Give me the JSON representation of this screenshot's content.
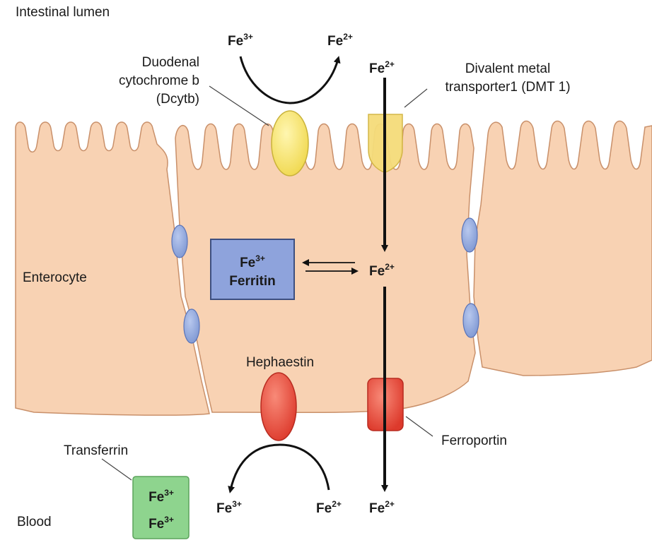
{
  "labels": {
    "intestinal_lumen": "Intestinal lumen",
    "dcytb": [
      "Duodenal",
      "cytochrome b",
      "(Dcytb)"
    ],
    "dmt1": [
      "Divalent metal",
      "transporter1 (DMT 1)"
    ],
    "enterocyte": "Enterocyte",
    "hephaestin": "Hephaestin",
    "ferroportin": "Ferroportin",
    "transferrin": "Transferrin",
    "blood": "Blood"
  },
  "ions": {
    "fe": "Fe",
    "charge3": "3+",
    "charge2": "2+"
  },
  "ferritin_box": {
    "ion": "Fe",
    "charge": "3+",
    "name": "Ferritin"
  },
  "colors": {
    "cell_fill": "#f8d2b3",
    "cell_stroke": "#c9906a",
    "junction": "#8fa8d8",
    "dcytb": "#f4e067",
    "dmt1": "#f5dc7a",
    "ferroportin": "#e8483a",
    "hephaestin": "#e8483a",
    "ferritin_box": "#8ea3dc",
    "transferrin_box": "#8ed48e"
  }
}
